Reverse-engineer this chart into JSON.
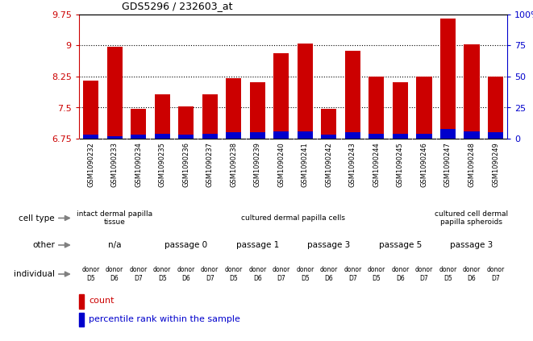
{
  "title": "GDS5296 / 232603_at",
  "samples": [
    "GSM1090232",
    "GSM1090233",
    "GSM1090234",
    "GSM1090235",
    "GSM1090236",
    "GSM1090237",
    "GSM1090238",
    "GSM1090239",
    "GSM1090240",
    "GSM1090241",
    "GSM1090242",
    "GSM1090243",
    "GSM1090244",
    "GSM1090245",
    "GSM1090246",
    "GSM1090247",
    "GSM1090248",
    "GSM1090249"
  ],
  "red_values": [
    8.15,
    8.98,
    7.48,
    7.82,
    7.52,
    7.82,
    8.22,
    8.12,
    8.82,
    9.05,
    7.48,
    8.88,
    8.25,
    8.12,
    8.25,
    9.65,
    9.02,
    8.25
  ],
  "blue_values_pct": [
    3,
    2,
    3,
    4,
    3,
    4,
    5,
    5,
    6,
    6,
    3,
    5,
    4,
    4,
    4,
    8,
    6,
    5
  ],
  "ylim_left": [
    6.75,
    9.75
  ],
  "ylim_right": [
    0,
    100
  ],
  "yticks_left": [
    6.75,
    7.5,
    8.25,
    9.0,
    9.75
  ],
  "yticks_right": [
    0,
    25,
    50,
    75,
    100
  ],
  "ytick_labels_left": [
    "6.75",
    "7.5",
    "8.25",
    "9",
    "9.75"
  ],
  "ytick_labels_right": [
    "0",
    "25",
    "50",
    "75",
    "100%"
  ],
  "cell_type_groups": [
    {
      "label": "intact dermal papilla\ntissue",
      "start": 0,
      "end": 3,
      "color": "#c0e8c0"
    },
    {
      "label": "cultured dermal papilla cells",
      "start": 3,
      "end": 15,
      "color": "#90e090"
    },
    {
      "label": "cultured cell dermal\npapilla spheroids",
      "start": 15,
      "end": 18,
      "color": "#c0e8c0"
    }
  ],
  "other_groups": [
    {
      "label": "n/a",
      "start": 0,
      "end": 3,
      "color": "#7070cc"
    },
    {
      "label": "passage 0",
      "start": 3,
      "end": 6,
      "color": "#a8a8e0"
    },
    {
      "label": "passage 1",
      "start": 6,
      "end": 9,
      "color": "#c0c0ec"
    },
    {
      "label": "passage 3",
      "start": 9,
      "end": 12,
      "color": "#8888d4"
    },
    {
      "label": "passage 5",
      "start": 12,
      "end": 15,
      "color": "#a8a8e0"
    },
    {
      "label": "passage 3",
      "start": 15,
      "end": 18,
      "color": "#c0c0ec"
    }
  ],
  "individual_donors": [
    "D5",
    "D6",
    "D7",
    "D5",
    "D6",
    "D7",
    "D5",
    "D6",
    "D7",
    "D5",
    "D6",
    "D7",
    "D5",
    "D6",
    "D7",
    "D5",
    "D6",
    "D7"
  ],
  "individual_color": "#e89090",
  "bar_color_red": "#cc0000",
  "bar_color_blue": "#0000cc",
  "xtick_bg": "#d0d0d0",
  "label_text_color": "#404040"
}
